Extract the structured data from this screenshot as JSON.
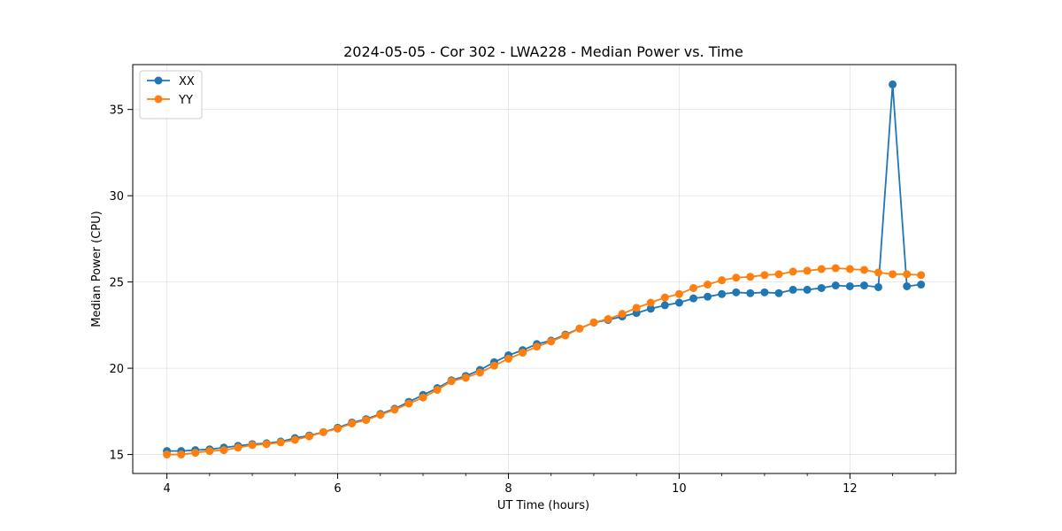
{
  "chart_data": {
    "type": "line",
    "title": "2024-05-05 - Cor 302 - LWA228 - Median Power vs. Time",
    "xlabel": "UT Time (hours)",
    "ylabel": "Median Power (CPU)",
    "xlim": [
      3.6,
      13.24
    ],
    "ylim": [
      13.9,
      37.6
    ],
    "xticks": [
      4,
      6,
      8,
      10,
      12
    ],
    "xtick_labels": [
      "4",
      "6",
      "8",
      "10",
      "12"
    ],
    "yticks": [
      15,
      20,
      25,
      30,
      35
    ],
    "ytick_labels": [
      "15",
      "20",
      "25",
      "30",
      "35"
    ],
    "grid": true,
    "legend_position": "top-left",
    "x": [
      4.0,
      4.167,
      4.333,
      4.5,
      4.667,
      4.833,
      5.0,
      5.167,
      5.333,
      5.5,
      5.667,
      5.833,
      6.0,
      6.167,
      6.333,
      6.5,
      6.667,
      6.833,
      7.0,
      7.167,
      7.333,
      7.5,
      7.667,
      7.833,
      8.0,
      8.167,
      8.333,
      8.5,
      8.667,
      8.833,
      9.0,
      9.167,
      9.333,
      9.5,
      9.667,
      9.833,
      10.0,
      10.167,
      10.333,
      10.5,
      10.667,
      10.833,
      11.0,
      11.167,
      11.333,
      11.5,
      11.667,
      11.833,
      12.0,
      12.167,
      12.333,
      12.5,
      12.667,
      12.833
    ],
    "series": [
      {
        "name": "XX",
        "color": "#1f77b4",
        "values": [
          15.2,
          15.2,
          15.25,
          15.3,
          15.4,
          15.5,
          15.6,
          15.65,
          15.75,
          15.95,
          16.1,
          16.3,
          16.55,
          16.85,
          17.05,
          17.35,
          17.65,
          18.05,
          18.45,
          18.85,
          19.3,
          19.55,
          19.9,
          20.35,
          20.75,
          21.05,
          21.4,
          21.6,
          21.95,
          22.3,
          22.65,
          22.8,
          23.0,
          23.2,
          23.45,
          23.65,
          23.8,
          24.05,
          24.15,
          24.3,
          24.4,
          24.35,
          24.4,
          24.35,
          24.55,
          24.55,
          24.65,
          24.8,
          24.75,
          24.8,
          24.7,
          36.45,
          24.75,
          24.85
        ]
      },
      {
        "name": "YY",
        "color": "#ff7f0e",
        "values": [
          15.0,
          15.0,
          15.1,
          15.2,
          15.25,
          15.4,
          15.55,
          15.6,
          15.7,
          15.85,
          16.05,
          16.3,
          16.5,
          16.8,
          17.0,
          17.3,
          17.6,
          17.95,
          18.3,
          18.75,
          19.25,
          19.45,
          19.75,
          20.15,
          20.55,
          20.9,
          21.25,
          21.55,
          21.9,
          22.3,
          22.65,
          22.85,
          23.15,
          23.5,
          23.8,
          24.1,
          24.3,
          24.65,
          24.85,
          25.1,
          25.25,
          25.3,
          25.4,
          25.45,
          25.6,
          25.65,
          25.75,
          25.8,
          25.75,
          25.7,
          25.55,
          25.45,
          25.45,
          25.4
        ]
      }
    ]
  }
}
